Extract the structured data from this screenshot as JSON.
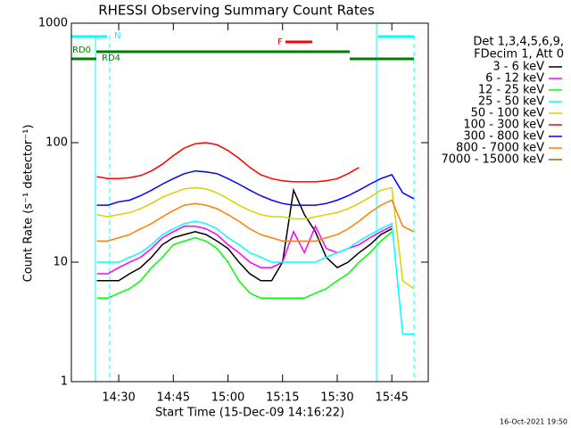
{
  "chart_data": {
    "type": "line",
    "title": "RHESSI Observing Summary Count Rates",
    "xlabel": "Start Time (15-Dec-09 14:16:22)",
    "ylabel": "Count Rate (s⁻¹ detector⁻¹)",
    "log_y": true,
    "xlim": [
      857,
      955
    ],
    "xticks": [
      {
        "value": 870,
        "label": "14:30"
      },
      {
        "value": 885,
        "label": "14:45"
      },
      {
        "value": 900,
        "label": "15:00"
      },
      {
        "value": 915,
        "label": "15:15"
      },
      {
        "value": 930,
        "label": "15:30"
      },
      {
        "value": 945,
        "label": "15:45"
      }
    ],
    "ylim": [
      1,
      1000
    ],
    "yticks": [
      1,
      10,
      100,
      1000
    ],
    "legend_title": [
      "Det 1,3,4,5,6,9,",
      "FDecim 1, Att 0"
    ],
    "legend_position": "right",
    "annotations": [
      {
        "text": "N",
        "color": "#00ffff"
      },
      {
        "text": "RD0",
        "color": "#008000"
      },
      {
        "text": "RD4",
        "color": "#008000"
      },
      {
        "text": "F",
        "color": "#ff0000"
      }
    ],
    "footer": "16-Oct-2021 19:50",
    "x": [
      864,
      867,
      870,
      873,
      876,
      879,
      882,
      885,
      888,
      891,
      894,
      897,
      900,
      903,
      906,
      909,
      912,
      915,
      918,
      921,
      924,
      927,
      930,
      933,
      936,
      939,
      942,
      945,
      948,
      951
    ],
    "series": [
      {
        "name": "3 - 6 keV",
        "color": "#000000",
        "values": [
          7,
          7,
          7,
          8,
          9,
          11,
          14,
          16,
          17,
          18,
          17,
          15,
          13,
          10,
          8,
          7,
          7,
          10,
          40,
          25,
          18,
          11,
          9,
          10,
          12,
          14,
          17,
          19,
          null,
          null
        ]
      },
      {
        "name": "6 - 12 keV",
        "color": "#ff00ff",
        "values": [
          8,
          8,
          9,
          10,
          11,
          13,
          16,
          18,
          20,
          20,
          19,
          17,
          14,
          12,
          10,
          9,
          9,
          10,
          18,
          12,
          20,
          13,
          12,
          13,
          14,
          16,
          18,
          20,
          null,
          null
        ]
      },
      {
        "name": "12 - 25 keV",
        "color": "#00ff00",
        "values": [
          5,
          5,
          5.5,
          6,
          7,
          9,
          11,
          14,
          15,
          16,
          15,
          13,
          10,
          7,
          5.5,
          5,
          5,
          5,
          5,
          5,
          5.5,
          6,
          7,
          8,
          10,
          12,
          15,
          18,
          null,
          null
        ]
      },
      {
        "name": "25 - 50 keV",
        "color": "#00ffff",
        "values": [
          10,
          10,
          10,
          11,
          12,
          14,
          17,
          19,
          21,
          22,
          21,
          19,
          16,
          14,
          12,
          11,
          10,
          10,
          10,
          10,
          10,
          11,
          12,
          13,
          15,
          17,
          19,
          21,
          2.5,
          2.5
        ]
      },
      {
        "name": "50 - 100 keV",
        "color": "#d4d400",
        "values": [
          25,
          24,
          25,
          26,
          28,
          31,
          35,
          38,
          41,
          42,
          41,
          38,
          34,
          30,
          27,
          25,
          24,
          24,
          23,
          23,
          24,
          25,
          26,
          28,
          31,
          35,
          40,
          42,
          7,
          6
        ]
      },
      {
        "name": "100 - 300 keV",
        "color": "#ff0000",
        "values": [
          52,
          50,
          50,
          51,
          53,
          58,
          66,
          78,
          90,
          98,
          100,
          96,
          86,
          74,
          62,
          54,
          50,
          48,
          47,
          47,
          47,
          48,
          50,
          55,
          62,
          null,
          null,
          null,
          null,
          null
        ]
      },
      {
        "name": "300 - 800 keV",
        "color": "#0000ff",
        "values": [
          30,
          30,
          32,
          33,
          36,
          40,
          45,
          50,
          55,
          58,
          57,
          55,
          50,
          45,
          40,
          36,
          33,
          31,
          30,
          30,
          30,
          31,
          33,
          36,
          40,
          45,
          50,
          54,
          38,
          34
        ]
      },
      {
        "name": "800 - 7000 keV",
        "color": "#ff8000",
        "values": [
          15,
          15,
          16,
          17,
          19,
          21,
          24,
          27,
          30,
          31,
          30,
          28,
          25,
          22,
          19,
          17,
          16,
          15,
          15,
          15,
          15,
          16,
          17,
          19,
          22,
          26,
          30,
          33,
          20,
          18
        ]
      },
      {
        "name": "7000 - 15000 keV",
        "color": "#a06400",
        "values": [
          null,
          null,
          null,
          null,
          null,
          null,
          null,
          null,
          null,
          null,
          null,
          null,
          null,
          null,
          null,
          null,
          null,
          null,
          null,
          null,
          null,
          null,
          null,
          null,
          null,
          null,
          null,
          null,
          null,
          null
        ]
      }
    ]
  }
}
